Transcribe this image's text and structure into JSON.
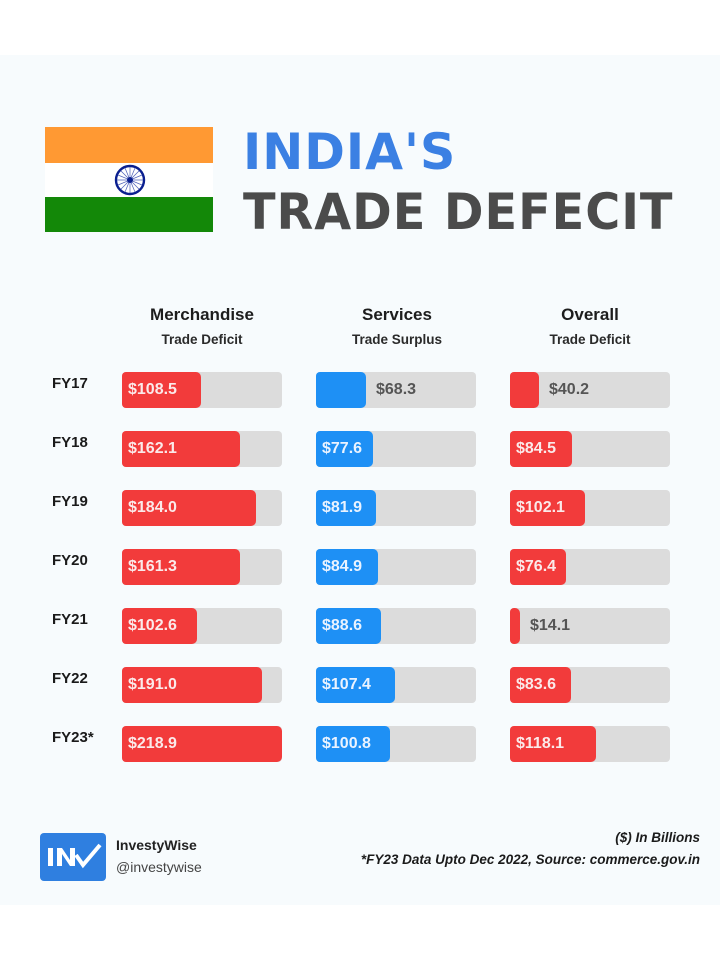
{
  "header": {
    "title_line1": "INDIA'S",
    "title_line2": "TRADE DEFECIT",
    "flag_icon": "india-flag-icon"
  },
  "columns": [
    {
      "title": "Merchandise",
      "subtitle": "Trade Deficit",
      "color": "#f23b3b"
    },
    {
      "title": "Services",
      "subtitle": "Trade Surplus",
      "color": "#1e90f5"
    },
    {
      "title": "Overall",
      "subtitle": "Trade Deficit",
      "color": "#f23b3b"
    }
  ],
  "rows": [
    {
      "label": "FY17",
      "values": [
        "$108.5",
        "$68.3",
        "$40.2"
      ]
    },
    {
      "label": "FY18",
      "values": [
        "$162.1",
        "$77.6",
        "$84.5"
      ]
    },
    {
      "label": "FY19",
      "values": [
        "$184.0",
        "$81.9",
        "$102.1"
      ]
    },
    {
      "label": "FY20",
      "values": [
        "$161.3",
        "$84.9",
        "$76.4"
      ]
    },
    {
      "label": "FY21",
      "values": [
        "$102.6",
        "$88.6",
        "$14.1"
      ]
    },
    {
      "label": "FY22",
      "values": [
        "$191.0",
        "$107.4",
        "$83.6"
      ]
    },
    {
      "label": "FY23*",
      "values": [
        "$218.9",
        "$100.8",
        "$118.1"
      ]
    }
  ],
  "footer": {
    "brand_name": "InvestyWise",
    "brand_handle": "@investywise",
    "logo_text": "INV",
    "unit_note": "($) In Billions",
    "source_note": "*FY23 Data Upto Dec 2022, Source: commerce.gov.in"
  },
  "colors": {
    "deficit_red": "#f23b3b",
    "surplus_blue": "#1e90f5",
    "track_gray": "#dcdcdc",
    "title_blue": "#3b80e3",
    "title_gray": "#4b4b4b",
    "background": "#f7fbfd"
  },
  "chart_data": {
    "type": "bar",
    "orientation": "horizontal",
    "title": "INDIA'S TRADE DEFECIT",
    "categories": [
      "FY17",
      "FY18",
      "FY19",
      "FY20",
      "FY21",
      "FY22",
      "FY23*"
    ],
    "series": [
      {
        "name": "Merchandise Trade Deficit",
        "values": [
          108.5,
          162.1,
          184.0,
          161.3,
          102.6,
          191.0,
          218.9
        ],
        "color": "#f23b3b"
      },
      {
        "name": "Services Trade Surplus",
        "values": [
          68.3,
          77.6,
          81.9,
          84.9,
          88.6,
          107.4,
          100.8
        ],
        "color": "#1e90f5"
      },
      {
        "name": "Overall Trade Deficit",
        "values": [
          40.2,
          84.5,
          102.1,
          76.4,
          14.1,
          83.6,
          118.1
        ],
        "color": "#f23b3b"
      }
    ],
    "layout": "small multiples (3 panels, shared scale)",
    "xlim": [
      0,
      218.9
    ],
    "unit": "($) In Billions",
    "annotations": [
      "*FY23 Data Upto Dec 2022, Source: commerce.gov.in"
    ],
    "grid": false,
    "legend": "column headers"
  }
}
